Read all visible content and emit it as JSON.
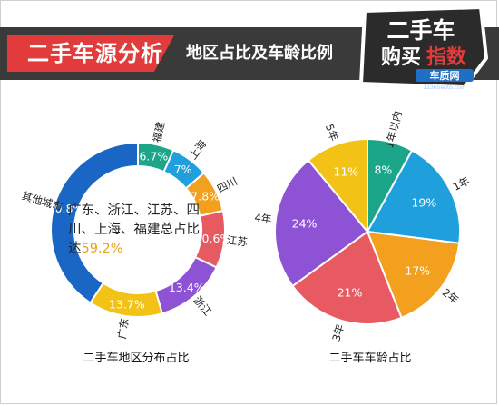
{
  "header": {
    "title": "二手车源分析",
    "subtitle": "地区占比及车龄比例",
    "logo": {
      "text_line1": "二手车",
      "text_line2a": "购买",
      "text_line2b": "指数",
      "brand": "车质网",
      "site": "12365auto.com"
    }
  },
  "colors": {
    "header_band": "#3a3a3a",
    "title_red": "#e23b3b",
    "teal": "#1ba68a",
    "blue": "#1f9fdc",
    "orange": "#f2a01e",
    "red": "#e85a62",
    "purple": "#8e53d4",
    "yellow": "#f2c316",
    "dark_blue": "#1a66c4"
  },
  "center_note": {
    "text": "广东、浙江、江苏、四川、上海、福建总占比达",
    "highlight": "59.2%"
  },
  "chart_data": [
    {
      "type": "pie",
      "variant": "donut",
      "title": "二手车地区分布占比",
      "slices": [
        {
          "label": "福建",
          "value": 6.7,
          "value_label": "6.7%",
          "color": "#1ba68a"
        },
        {
          "label": "上海",
          "value": 7.0,
          "value_label": "7%",
          "color": "#1f9fdc"
        },
        {
          "label": "四川",
          "value": 7.8,
          "value_label": "7.8%",
          "color": "#f2a01e"
        },
        {
          "label": "江苏",
          "value": 10.6,
          "value_label": "10.6%",
          "color": "#e85a62"
        },
        {
          "label": "浙江",
          "value": 13.4,
          "value_label": "13.4%",
          "color": "#8e53d4"
        },
        {
          "label": "广东",
          "value": 13.7,
          "value_label": "13.7%",
          "color": "#f2c316"
        },
        {
          "label": "其他城市",
          "value": 40.8,
          "value_label": "40.8%",
          "color": "#1a66c4"
        }
      ]
    },
    {
      "type": "pie",
      "title": "二手车车龄占比",
      "slices": [
        {
          "label": "1年以内",
          "value": 8,
          "value_label": "8%",
          "color": "#1ba68a"
        },
        {
          "label": "1年",
          "value": 19,
          "value_label": "19%",
          "color": "#1f9fdc"
        },
        {
          "label": "2年",
          "value": 17,
          "value_label": "17%",
          "color": "#f2a01e"
        },
        {
          "label": "3年",
          "value": 21,
          "value_label": "21%",
          "color": "#e85a62"
        },
        {
          "label": "4年",
          "value": 24,
          "value_label": "24%",
          "color": "#8e53d4"
        },
        {
          "label": "5年",
          "value": 11,
          "value_label": "11%",
          "color": "#f2c316"
        }
      ]
    }
  ]
}
